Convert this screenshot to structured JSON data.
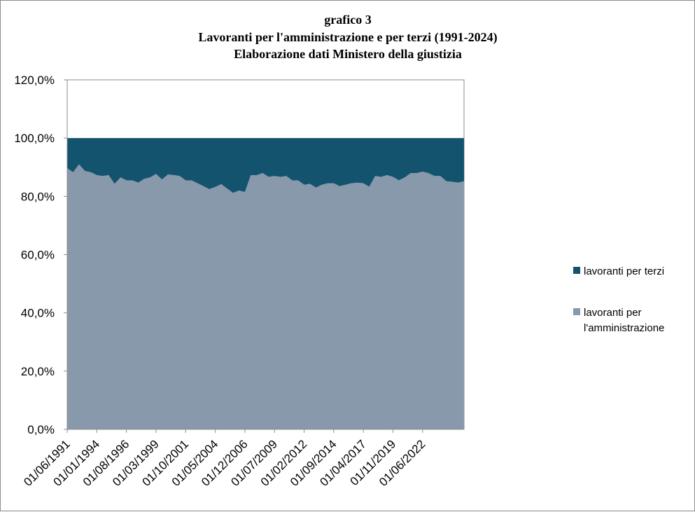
{
  "chart_data": {
    "type": "area",
    "stacked": true,
    "title_lines": [
      "grafico 3",
      "Lavoranti per l'amministrazione  e per terzi (1991-2024)",
      "Elaborazione dati Ministero  della giustizia"
    ],
    "xlabel": "",
    "ylabel": "",
    "ylim": [
      0,
      1.2
    ],
    "y_ticks": [
      0,
      0.2,
      0.4,
      0.6,
      0.8,
      1.0,
      1.2
    ],
    "y_tick_labels": [
      "0,0%",
      "20,0%",
      "40,0%",
      "60,0%",
      "80,0%",
      "100,0%",
      "120,0%"
    ],
    "x_tick_labels": [
      "01/06/1991",
      "01/01/1994",
      "01/08/1996",
      "01/03/1999",
      "01/10/2001",
      "01/05/2004",
      "01/12/2006",
      "01/07/2009",
      "01/02/2012",
      "01/09/2014",
      "01/04/2017",
      "01/11/2019",
      "01/06/2022"
    ],
    "x_tick_index": [
      0,
      5,
      10,
      15,
      20,
      25,
      30,
      35,
      40,
      45,
      50,
      55,
      60
    ],
    "grid": false,
    "legend_position": "right",
    "colors": {
      "lavoranti per terzi": "#14536e",
      "lavoranti per l'amministrazione": "#8799aa"
    },
    "series": [
      {
        "name": "lavoranti per terzi",
        "values": [
          0.103,
          0.117,
          0.09,
          0.113,
          0.117,
          0.127,
          0.13,
          0.127,
          0.157,
          0.135,
          0.145,
          0.145,
          0.153,
          0.14,
          0.135,
          0.123,
          0.142,
          0.125,
          0.127,
          0.13,
          0.145,
          0.145,
          0.155,
          0.165,
          0.175,
          0.168,
          0.158,
          0.173,
          0.188,
          0.18,
          0.185,
          0.127,
          0.127,
          0.12,
          0.133,
          0.13,
          0.133,
          0.13,
          0.145,
          0.145,
          0.16,
          0.157,
          0.17,
          0.16,
          0.155,
          0.155,
          0.165,
          0.16,
          0.155,
          0.153,
          0.155,
          0.167,
          0.13,
          0.133,
          0.127,
          0.133,
          0.145,
          0.135,
          0.12,
          0.12,
          0.115,
          0.12,
          0.13,
          0.13,
          0.148,
          0.15,
          0.153,
          0.148
        ]
      },
      {
        "name": "lavoranti per l'amministrazione",
        "values": [
          0.897,
          0.883,
          0.91,
          0.887,
          0.883,
          0.873,
          0.87,
          0.873,
          0.843,
          0.865,
          0.855,
          0.855,
          0.847,
          0.86,
          0.865,
          0.877,
          0.858,
          0.875,
          0.873,
          0.87,
          0.855,
          0.855,
          0.845,
          0.835,
          0.825,
          0.832,
          0.842,
          0.827,
          0.812,
          0.82,
          0.815,
          0.873,
          0.873,
          0.88,
          0.867,
          0.87,
          0.867,
          0.87,
          0.855,
          0.855,
          0.84,
          0.843,
          0.83,
          0.84,
          0.845,
          0.845,
          0.835,
          0.84,
          0.845,
          0.847,
          0.845,
          0.833,
          0.87,
          0.867,
          0.873,
          0.867,
          0.855,
          0.865,
          0.88,
          0.88,
          0.885,
          0.88,
          0.87,
          0.87,
          0.852,
          0.85,
          0.847,
          0.852
        ]
      }
    ]
  }
}
